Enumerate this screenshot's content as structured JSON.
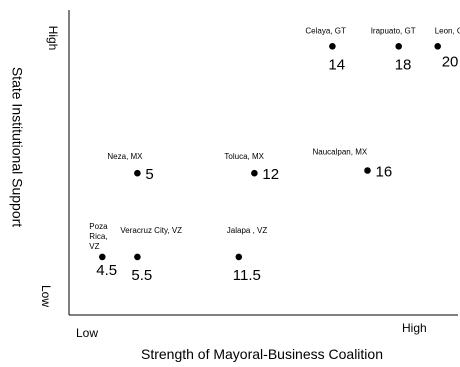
{
  "chart_data": {
    "type": "scatter",
    "title": "",
    "xlabel": "Strength of Mayoral-Business Coalition",
    "ylabel": "State Institutional Support",
    "x_axis_ends": {
      "low": "Low",
      "high": "High"
    },
    "y_axis_ends": {
      "low": "Low",
      "high": "High"
    },
    "xlim": [
      0,
      10
    ],
    "ylim": [
      0,
      10
    ],
    "grid": false,
    "points": [
      {
        "name_lines": [
          "Poza",
          "Rica,",
          "VZ"
        ],
        "value": "4.5",
        "x": 0.7,
        "y": 1.3
      },
      {
        "name_lines": [
          "Veracruz City, VZ"
        ],
        "value": "5.5",
        "x": 1.6,
        "y": 1.3
      },
      {
        "name_lines": [
          "Jalapa , VZ"
        ],
        "value": "11.5",
        "x": 4.2,
        "y": 1.3
      },
      {
        "name_lines": [
          "Neza, MX"
        ],
        "value": "5",
        "x": 1.6,
        "y": 4.4
      },
      {
        "name_lines": [
          "Toluca, MX"
        ],
        "value": "12",
        "x": 4.6,
        "y": 4.4
      },
      {
        "name_lines": [
          "Naucalpan, MX"
        ],
        "value": "16",
        "x": 7.5,
        "y": 4.5
      },
      {
        "name_lines": [
          "Celaya, GT"
        ],
        "value": "14",
        "x": 6.6,
        "y": 9.1
      },
      {
        "name_lines": [
          "Irapuato, GT"
        ],
        "value": "18",
        "x": 8.3,
        "y": 9.1
      },
      {
        "name_lines": [
          "Leon, GT"
        ],
        "value": "20",
        "x": 9.3,
        "y": 9.1
      }
    ]
  }
}
